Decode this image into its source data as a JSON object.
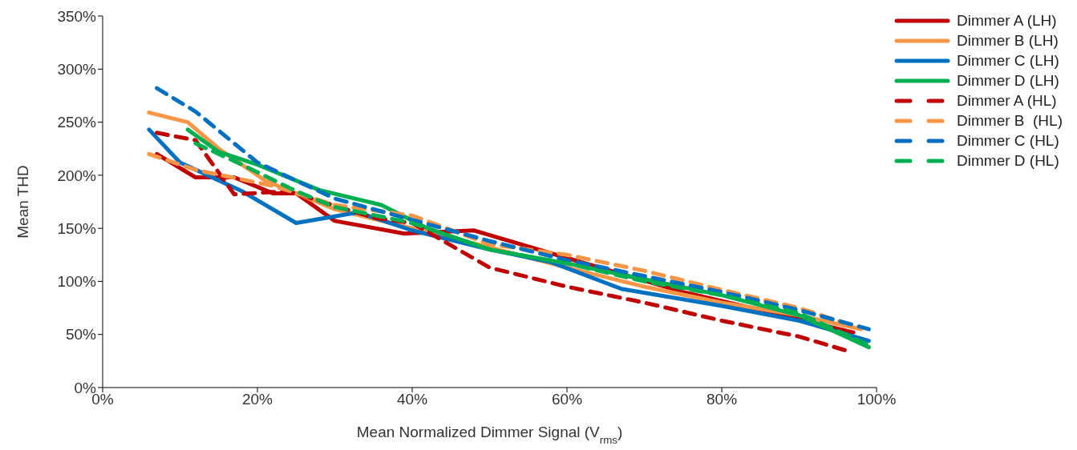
{
  "chart_data": {
    "type": "line",
    "xlabel": "Mean Normalized Dimmer Signal (V$_{rms}$)",
    "ylabel": "Mean THD",
    "xlim": [
      0,
      100
    ],
    "xticks": [
      {
        "value": 0,
        "label": "0%"
      },
      {
        "value": 20,
        "label": "20%"
      },
      {
        "value": 40,
        "label": "40%"
      },
      {
        "value": 60,
        "label": "60%"
      },
      {
        "value": 80,
        "label": "80%"
      },
      {
        "value": 100,
        "label": "100%"
      }
    ],
    "ylim": [
      0,
      350
    ],
    "yticks": [
      {
        "value": 0,
        "label": "0%"
      },
      {
        "value": 50,
        "label": "50%"
      },
      {
        "value": 100,
        "label": "100%"
      },
      {
        "value": 150,
        "label": "150%"
      },
      {
        "value": 200,
        "label": "200%"
      },
      {
        "value": 250,
        "label": "250%"
      },
      {
        "value": 300,
        "label": "300%"
      },
      {
        "value": 350,
        "label": "350%"
      }
    ],
    "grid": false,
    "legend": "right",
    "marker": "none",
    "series": [
      {
        "name": "Dimmer A (LH)",
        "color": "#c00000",
        "line_style": "solid",
        "x": [
          7,
          12,
          17,
          22,
          25,
          30,
          39,
          48,
          60,
          75,
          85,
          97
        ],
        "values": [
          220,
          198,
          198,
          183,
          183,
          157,
          145,
          148,
          122,
          90,
          73,
          52
        ]
      },
      {
        "name": "Dimmer B (LH)",
        "color": "#f79646",
        "line_style": "solid",
        "x": [
          6,
          11,
          15,
          21,
          30,
          40,
          50,
          60,
          70,
          80,
          90,
          98
        ],
        "values": [
          259,
          250,
          225,
          195,
          168,
          150,
          132,
          113,
          95,
          80,
          68,
          55
        ]
      },
      {
        "name": "Dimmer C (LH)",
        "color": "#0070c0",
        "line_style": "solid",
        "x": [
          6,
          10,
          18,
          25,
          33,
          40,
          50,
          58,
          67,
          80,
          90,
          99
        ],
        "values": [
          243,
          212,
          185,
          155,
          165,
          148,
          130,
          118,
          93,
          77,
          63,
          44
        ]
      },
      {
        "name": "Dimmer D (LH)",
        "color": "#00b050",
        "line_style": "solid",
        "x": [
          11,
          15,
          20,
          28,
          36,
          42,
          50,
          60,
          70,
          80,
          90,
          99
        ],
        "values": [
          243,
          222,
          210,
          186,
          172,
          150,
          130,
          117,
          102,
          87,
          68,
          38
        ]
      },
      {
        "name": "Dimmer A (HL)",
        "color": "#c00000",
        "line_style": "dashed",
        "x": [
          7,
          12,
          17,
          24,
          35,
          40,
          50,
          60,
          70,
          80,
          90,
          96
        ],
        "values": [
          240,
          233,
          182,
          185,
          160,
          155,
          113,
          95,
          80,
          63,
          48,
          35
        ]
      },
      {
        "name": "Dimmer B  (HL)",
        "color": "#f79646",
        "line_style": "dashed",
        "x": [
          6,
          12,
          22,
          30,
          40,
          50,
          60,
          70,
          80,
          90,
          97
        ],
        "values": [
          220,
          205,
          190,
          172,
          162,
          135,
          125,
          110,
          92,
          75,
          58
        ]
      },
      {
        "name": "Dimmer C (HL)",
        "color": "#0070c0",
        "line_style": "dashed",
        "x": [
          7,
          12,
          20,
          30,
          40,
          50,
          60,
          70,
          80,
          90,
          99
        ],
        "values": [
          282,
          260,
          212,
          178,
          158,
          138,
          120,
          105,
          90,
          73,
          55
        ]
      },
      {
        "name": "Dimmer D (HL)",
        "color": "#00b050",
        "line_style": "dashed",
        "x": [
          12,
          18,
          25,
          30,
          40,
          50,
          60,
          70,
          80,
          90,
          99
        ],
        "values": [
          230,
          210,
          185,
          170,
          155,
          130,
          117,
          100,
          87,
          70,
          40
        ]
      }
    ]
  }
}
